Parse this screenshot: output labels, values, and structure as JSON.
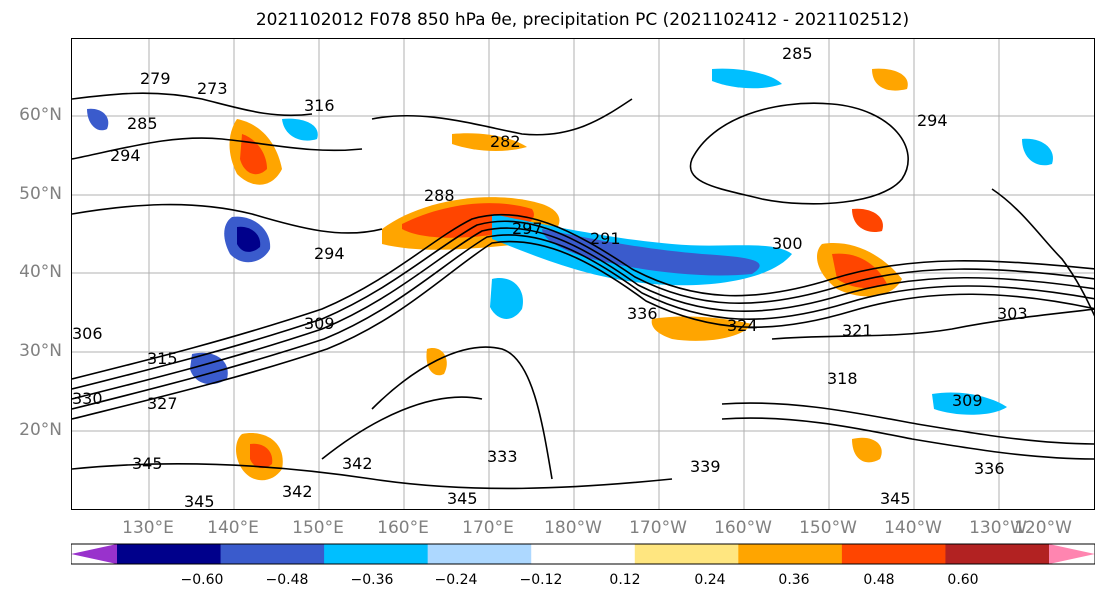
{
  "title": "2021102012 F078 850 hPa θe, precipitation PC (2021102412 - 2021102512)",
  "map": {
    "lat_labels": [
      "60°N",
      "50°N",
      "40°N",
      "30°N",
      "20°N"
    ],
    "lon_labels": [
      "130°E",
      "140°E",
      "150°E",
      "160°E",
      "170°E",
      "180°W",
      "170°W",
      "160°W",
      "150°W",
      "140°W",
      "130°W",
      "120°W"
    ],
    "contour_labels": [
      "279",
      "273",
      "285",
      "294",
      "316",
      "282",
      "285",
      "294",
      "288",
      "297",
      "291",
      "300",
      "294",
      "309",
      "306",
      "315",
      "327",
      "330",
      "336",
      "324",
      "321",
      "318",
      "309",
      "345",
      "342",
      "333",
      "339",
      "345",
      "342",
      "345",
      "336",
      "345",
      "303"
    ]
  },
  "colorbar": {
    "ticks": [
      "−0.60",
      "−0.48",
      "−0.36",
      "−0.24",
      "−0.12",
      "0.12",
      "0.24",
      "0.36",
      "0.48",
      "0.60"
    ],
    "colors": [
      "#9932cc",
      "#00008b",
      "#3a5bcc",
      "#00bfff",
      "#add8ff",
      "#ffffff",
      "#ffe680",
      "#ffa500",
      "#ff4500",
      "#b22222",
      "#ff85b0"
    ]
  }
}
